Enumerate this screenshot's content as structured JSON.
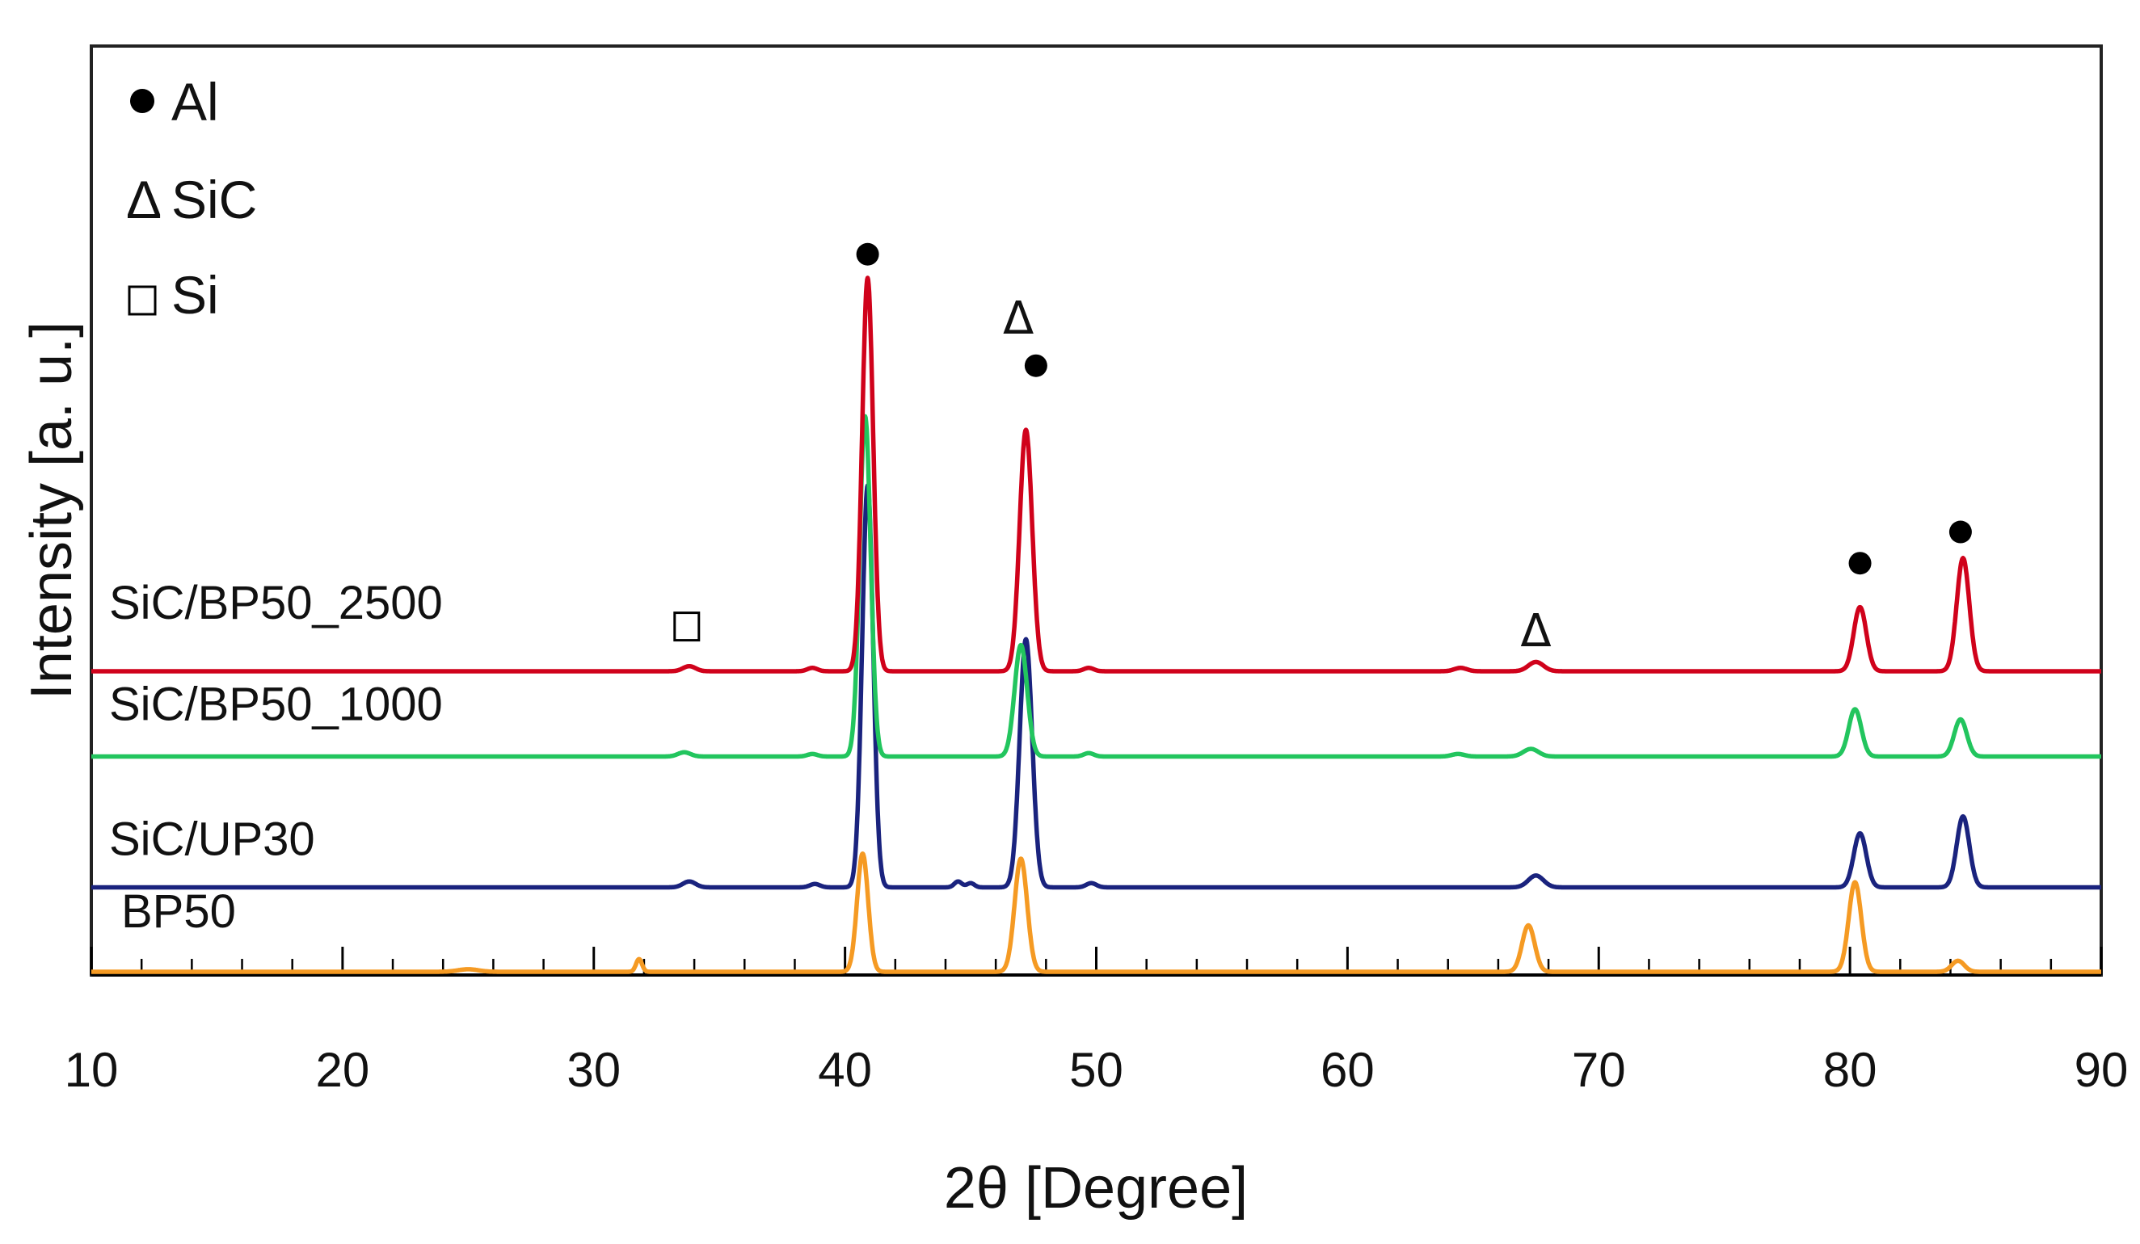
{
  "chart_data": {
    "type": "line",
    "title": "",
    "xlabel": "2θ [Degree]",
    "ylabel": "Intensity [a. u.]",
    "xlim": [
      10,
      90
    ],
    "xticks": [
      10,
      20,
      30,
      40,
      50,
      60,
      70,
      80,
      90
    ],
    "tick_labels": [
      "10",
      "20",
      "30",
      "40",
      "50",
      "60",
      "70",
      "80",
      "90"
    ],
    "y_ticks_shown": false,
    "legend": {
      "placement": "top-left",
      "entries": [
        {
          "symbol": "●",
          "label": "Al"
        },
        {
          "symbol": "Δ",
          "label": "SiC"
        },
        {
          "symbol": "□",
          "label": "Si"
        }
      ]
    },
    "series": [
      {
        "name": "SiC/BP50_2500",
        "color": "#d0021b",
        "baseline": 3.56,
        "peaks": [
          {
            "x": 33.8,
            "h": 0.06,
            "w": 0.25
          },
          {
            "x": 38.7,
            "h": 0.04,
            "w": 0.2
          },
          {
            "x": 40.9,
            "h": 4.66,
            "w": 0.22
          },
          {
            "x": 47.2,
            "h": 2.86,
            "w": 0.25
          },
          {
            "x": 49.7,
            "h": 0.04,
            "w": 0.2
          },
          {
            "x": 64.5,
            "h": 0.04,
            "w": 0.25
          },
          {
            "x": 67.5,
            "h": 0.11,
            "w": 0.3
          },
          {
            "x": 80.4,
            "h": 0.76,
            "w": 0.25
          },
          {
            "x": 84.5,
            "h": 1.34,
            "w": 0.25
          }
        ]
      },
      {
        "name": "SiC/BP50_1000",
        "color": "#22c55e",
        "baseline": 2.55,
        "peaks": [
          {
            "x": 33.6,
            "h": 0.05,
            "w": 0.25
          },
          {
            "x": 38.7,
            "h": 0.03,
            "w": 0.2
          },
          {
            "x": 40.8,
            "h": 4.03,
            "w": 0.22
          },
          {
            "x": 47.0,
            "h": 1.32,
            "w": 0.25
          },
          {
            "x": 49.7,
            "h": 0.04,
            "w": 0.2
          },
          {
            "x": 64.4,
            "h": 0.03,
            "w": 0.25
          },
          {
            "x": 67.3,
            "h": 0.09,
            "w": 0.3
          },
          {
            "x": 80.2,
            "h": 0.56,
            "w": 0.25
          },
          {
            "x": 84.4,
            "h": 0.44,
            "w": 0.25
          }
        ]
      },
      {
        "name": "SiC/UP30",
        "color": "#1a237e",
        "baseline": 1.0,
        "peaks": [
          {
            "x": 33.8,
            "h": 0.07,
            "w": 0.25
          },
          {
            "x": 38.8,
            "h": 0.04,
            "w": 0.2
          },
          {
            "x": 40.9,
            "h": 4.76,
            "w": 0.22
          },
          {
            "x": 44.5,
            "h": 0.07,
            "w": 0.15
          },
          {
            "x": 45.0,
            "h": 0.05,
            "w": 0.15
          },
          {
            "x": 47.2,
            "h": 2.94,
            "w": 0.25
          },
          {
            "x": 49.8,
            "h": 0.05,
            "w": 0.2
          },
          {
            "x": 67.5,
            "h": 0.14,
            "w": 0.3
          },
          {
            "x": 80.4,
            "h": 0.64,
            "w": 0.25
          },
          {
            "x": 84.5,
            "h": 0.84,
            "w": 0.25
          }
        ]
      },
      {
        "name": "BP50",
        "color": "#f59a23",
        "baseline": 0.0,
        "peaks": [
          {
            "x": 25.0,
            "h": 0.03,
            "w": 0.4
          },
          {
            "x": 31.8,
            "h": 0.15,
            "w": 0.12
          },
          {
            "x": 40.7,
            "h": 1.4,
            "w": 0.22
          },
          {
            "x": 47.0,
            "h": 1.34,
            "w": 0.25
          },
          {
            "x": 67.2,
            "h": 0.55,
            "w": 0.25
          },
          {
            "x": 80.2,
            "h": 1.06,
            "w": 0.25
          },
          {
            "x": 84.3,
            "h": 0.13,
            "w": 0.25
          }
        ]
      }
    ],
    "annotations": [
      {
        "symbol": "●",
        "x": 40.9,
        "y": 8.5
      },
      {
        "symbol": "Δ",
        "x": 46.9,
        "y": 7.75
      },
      {
        "symbol": "●",
        "x": 47.6,
        "y": 7.18
      },
      {
        "symbol": "□",
        "x": 33.7,
        "y": 4.09
      },
      {
        "symbol": "Δ",
        "x": 67.5,
        "y": 4.05
      },
      {
        "symbol": "●",
        "x": 80.4,
        "y": 4.84
      },
      {
        "symbol": "●",
        "x": 84.4,
        "y": 5.21
      }
    ]
  }
}
